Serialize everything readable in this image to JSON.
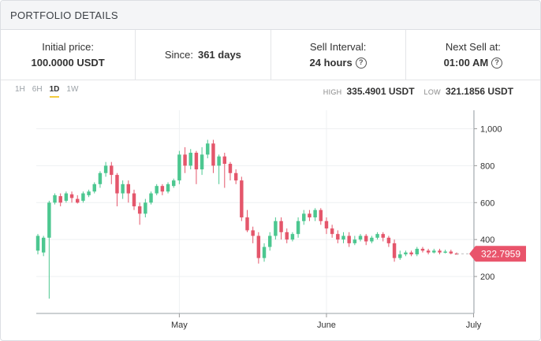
{
  "header": {
    "title": "PORTFOLIO DETAILS"
  },
  "stats": {
    "initial_price_label": "Initial price:",
    "initial_price_value": "100.0000 USDT",
    "since_label": "Since:",
    "since_value": "361 days",
    "sell_interval_label": "Sell Interval:",
    "sell_interval_value": "24 hours",
    "next_sell_label": "Next Sell at:",
    "next_sell_value": "01:00 AM"
  },
  "icons": {
    "help": "question-circle-icon"
  },
  "timeframes": [
    "1H",
    "6H",
    "1D",
    "1W"
  ],
  "active_timeframe": "1D",
  "hilo": {
    "high_label": "HIGH",
    "high_value": "335.4901 USDT",
    "low_label": "LOW",
    "low_value": "321.1856 USDT"
  },
  "colors": {
    "up": "#4cc790",
    "down": "#e4566b",
    "accent": "#f3cb3d",
    "price_tag": "#e9546b"
  },
  "chart_data": {
    "type": "candlestick",
    "y_ticks": [
      "1,000",
      "800",
      "600",
      "400",
      "200"
    ],
    "y_tick_values": [
      1000,
      800,
      600,
      400,
      200
    ],
    "ylim": [
      0,
      1100
    ],
    "x_ticks": [
      "May",
      "June",
      "July"
    ],
    "x_tick_index": [
      25,
      51,
      77
    ],
    "current_price": 322.7959,
    "current_price_label": "322.7959",
    "candles": [
      [
        340,
        420,
        320,
        430
      ],
      [
        330,
        410,
        310,
        420
      ],
      [
        410,
        600,
        80,
        610
      ],
      [
        600,
        640,
        590,
        650
      ],
      [
        635,
        600,
        580,
        650
      ],
      [
        610,
        650,
        600,
        660
      ],
      [
        645,
        625,
        600,
        660
      ],
      [
        620,
        600,
        595,
        640
      ],
      [
        610,
        650,
        600,
        660
      ],
      [
        640,
        660,
        630,
        670
      ],
      [
        660,
        700,
        650,
        710
      ],
      [
        700,
        760,
        680,
        770
      ],
      [
        760,
        800,
        740,
        820
      ],
      [
        800,
        750,
        700,
        820
      ],
      [
        750,
        650,
        580,
        760
      ],
      [
        650,
        700,
        620,
        720
      ],
      [
        700,
        650,
        600,
        720
      ],
      [
        650,
        580,
        560,
        670
      ],
      [
        580,
        540,
        480,
        600
      ],
      [
        540,
        600,
        520,
        620
      ],
      [
        600,
        650,
        590,
        660
      ],
      [
        650,
        690,
        640,
        700
      ],
      [
        690,
        660,
        640,
        700
      ],
      [
        660,
        700,
        650,
        710
      ],
      [
        690,
        720,
        680,
        730
      ],
      [
        720,
        860,
        700,
        880
      ],
      [
        860,
        800,
        760,
        900
      ],
      [
        800,
        870,
        780,
        890
      ],
      [
        870,
        780,
        700,
        880
      ],
      [
        780,
        860,
        750,
        900
      ],
      [
        860,
        920,
        840,
        940
      ],
      [
        920,
        800,
        760,
        940
      ],
      [
        800,
        850,
        700,
        860
      ],
      [
        850,
        810,
        680,
        870
      ],
      [
        810,
        760,
        720,
        820
      ],
      [
        760,
        720,
        700,
        780
      ],
      [
        720,
        520,
        500,
        740
      ],
      [
        520,
        450,
        440,
        560
      ],
      [
        450,
        420,
        380,
        470
      ],
      [
        420,
        300,
        270,
        440
      ],
      [
        300,
        360,
        280,
        380
      ],
      [
        360,
        420,
        340,
        440
      ],
      [
        420,
        500,
        400,
        520
      ],
      [
        500,
        440,
        400,
        520
      ],
      [
        440,
        400,
        380,
        460
      ],
      [
        400,
        430,
        390,
        440
      ],
      [
        430,
        500,
        410,
        520
      ],
      [
        500,
        540,
        480,
        560
      ],
      [
        540,
        520,
        500,
        560
      ],
      [
        520,
        560,
        500,
        570
      ],
      [
        560,
        500,
        480,
        570
      ],
      [
        500,
        460,
        430,
        520
      ],
      [
        460,
        430,
        410,
        480
      ],
      [
        430,
        400,
        380,
        450
      ],
      [
        400,
        420,
        380,
        440
      ],
      [
        420,
        380,
        360,
        440
      ],
      [
        380,
        400,
        370,
        420
      ],
      [
        400,
        420,
        390,
        430
      ],
      [
        420,
        390,
        370,
        430
      ],
      [
        390,
        410,
        380,
        420
      ],
      [
        410,
        430,
        400,
        440
      ],
      [
        430,
        410,
        390,
        440
      ],
      [
        410,
        380,
        360,
        420
      ],
      [
        380,
        300,
        280,
        400
      ],
      [
        300,
        320,
        290,
        340
      ],
      [
        320,
        330,
        310,
        340
      ],
      [
        330,
        320,
        310,
        340
      ],
      [
        320,
        350,
        310,
        360
      ],
      [
        350,
        340,
        330,
        360
      ],
      [
        340,
        330,
        320,
        350
      ],
      [
        330,
        340,
        325,
        350
      ],
      [
        340,
        330,
        320,
        350
      ],
      [
        330,
        335,
        325,
        345
      ],
      [
        335,
        325,
        320,
        345
      ],
      [
        325,
        323,
        320,
        330
      ]
    ]
  }
}
